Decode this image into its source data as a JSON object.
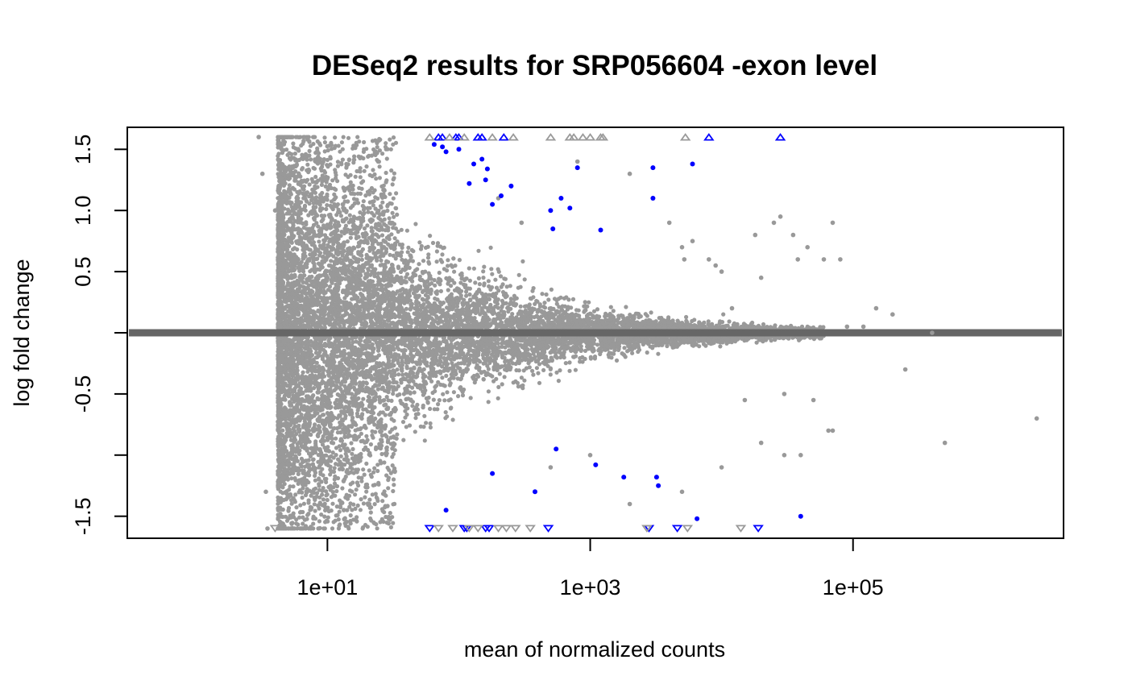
{
  "chart_data": {
    "type": "scatter",
    "title": "DESeq2 results for SRP056604 -exon level",
    "xlabel": "mean of normalized counts",
    "ylabel": "log fold change",
    "x_scale": "log10",
    "xlim": [
      0.3,
      4000000
    ],
    "ylim": [
      -1.68,
      1.68
    ],
    "x_ticks": [
      {
        "value": 10,
        "label": "1e+01"
      },
      {
        "value": 1000,
        "label": "1e+03"
      },
      {
        "value": 100000,
        "label": "1e+05"
      }
    ],
    "y_ticks": [
      {
        "value": -1.5,
        "label": "-1.5"
      },
      {
        "value": -1.0,
        "label": ""
      },
      {
        "value": -0.5,
        "label": "-0.5"
      },
      {
        "value": 0.0,
        "label": ""
      },
      {
        "value": 0.5,
        "label": "0.5"
      },
      {
        "value": 1.0,
        "label": "1.0"
      },
      {
        "value": 1.5,
        "label": "1.5"
      }
    ],
    "reference_line": {
      "y": 0,
      "color": "#666666"
    },
    "colors": {
      "non_significant": "#999999",
      "significant": "#0000ff"
    },
    "clip_limit": 1.6,
    "series": [
      {
        "significant": false,
        "points": [
          [
            3,
            1.6
          ],
          [
            3.5,
            -1.6
          ],
          [
            3.2,
            1.3
          ],
          [
            3.4,
            -1.3
          ],
          [
            4,
            1.0
          ],
          [
            5,
            -1.0
          ],
          [
            200,
            1.1
          ],
          [
            300,
            0.9
          ],
          [
            500,
            -1.1
          ],
          [
            800,
            1.4
          ],
          [
            1000,
            -1.0
          ],
          [
            2000,
            1.3
          ],
          [
            3000,
            1.1
          ],
          [
            4000,
            0.9
          ],
          [
            5000,
            0.7
          ],
          [
            5200,
            0.6
          ],
          [
            6000,
            0.75
          ],
          [
            8000,
            0.6
          ],
          [
            9000,
            0.55
          ],
          [
            10000,
            0.5
          ],
          [
            12000,
            0.2
          ],
          [
            15000,
            -0.55
          ],
          [
            18000,
            0.8
          ],
          [
            20000,
            0.45
          ],
          [
            25000,
            0.9
          ],
          [
            28000,
            0.95
          ],
          [
            30000,
            -0.5
          ],
          [
            35000,
            0.8
          ],
          [
            38000,
            0.6
          ],
          [
            45000,
            0.7
          ],
          [
            50000,
            -0.55
          ],
          [
            60000,
            0.6
          ],
          [
            65000,
            -0.8
          ],
          [
            70000,
            0.9
          ],
          [
            80000,
            0.6
          ],
          [
            90000,
            0.05
          ],
          [
            120000,
            0.05
          ],
          [
            150000,
            0.2
          ],
          [
            200000,
            0.15
          ],
          [
            250000,
            -0.3
          ],
          [
            400000,
            0.0
          ],
          [
            500000,
            -0.9
          ],
          [
            2500000,
            -0.7
          ],
          [
            40000,
            -1.0
          ],
          [
            70000,
            -0.8
          ],
          [
            5000,
            -1.3
          ],
          [
            10000,
            -1.1
          ],
          [
            20000,
            -0.9
          ],
          [
            30000,
            -1.0
          ],
          [
            2000,
            -1.4
          ]
        ]
      },
      {
        "significant": true,
        "points": [
          [
            100,
            1.5
          ],
          [
            150,
            1.42
          ],
          [
            120,
            1.22
          ],
          [
            130,
            1.38
          ],
          [
            165,
            1.34
          ],
          [
            180,
            1.05
          ],
          [
            210,
            1.12
          ],
          [
            250,
            1.2
          ],
          [
            160,
            1.25
          ],
          [
            800,
            1.35
          ],
          [
            700,
            1.02
          ],
          [
            600,
            1.1
          ],
          [
            500,
            1.0
          ],
          [
            520,
            0.85
          ],
          [
            1200,
            0.84
          ],
          [
            3000,
            1.35
          ],
          [
            3000,
            1.1
          ],
          [
            6000,
            1.38
          ],
          [
            550,
            -0.95
          ],
          [
            1100,
            -1.08
          ],
          [
            1800,
            -1.18
          ],
          [
            3200,
            -1.18
          ],
          [
            3300,
            -1.25
          ],
          [
            380,
            -1.3
          ],
          [
            180,
            -1.15
          ],
          [
            80,
            -1.45
          ],
          [
            6500,
            -1.52
          ],
          [
            40000,
            -1.5
          ],
          [
            75,
            1.52
          ],
          [
            80,
            1.48
          ],
          [
            65,
            1.54
          ]
        ]
      }
    ],
    "clipped_markers": [
      {
        "x": 70,
        "y": 1.6,
        "significant": true
      },
      {
        "x": 75,
        "y": 1.6,
        "significant": true
      },
      {
        "x": 95,
        "y": 1.6,
        "significant": true
      },
      {
        "x": 100,
        "y": 1.6,
        "significant": true
      },
      {
        "x": 140,
        "y": 1.6,
        "significant": true
      },
      {
        "x": 150,
        "y": 1.6,
        "significant": true
      },
      {
        "x": 220,
        "y": 1.6,
        "significant": true
      },
      {
        "x": 8000,
        "y": 1.6,
        "significant": true
      },
      {
        "x": 28000,
        "y": 1.6,
        "significant": true
      },
      {
        "x": 60,
        "y": 1.6,
        "significant": false
      },
      {
        "x": 85,
        "y": 1.6,
        "significant": false
      },
      {
        "x": 110,
        "y": 1.6,
        "significant": false
      },
      {
        "x": 180,
        "y": 1.6,
        "significant": false
      },
      {
        "x": 260,
        "y": 1.6,
        "significant": false
      },
      {
        "x": 500,
        "y": 1.6,
        "significant": false
      },
      {
        "x": 700,
        "y": 1.6,
        "significant": false
      },
      {
        "x": 750,
        "y": 1.6,
        "significant": false
      },
      {
        "x": 880,
        "y": 1.6,
        "significant": false
      },
      {
        "x": 1000,
        "y": 1.6,
        "significant": false
      },
      {
        "x": 1200,
        "y": 1.6,
        "significant": false
      },
      {
        "x": 1250,
        "y": 1.6,
        "significant": false
      },
      {
        "x": 5300,
        "y": 1.6,
        "significant": false
      },
      {
        "x": 60,
        "y": -1.6,
        "significant": true
      },
      {
        "x": 110,
        "y": -1.6,
        "significant": true
      },
      {
        "x": 115,
        "y": -1.6,
        "significant": true
      },
      {
        "x": 160,
        "y": -1.6,
        "significant": true
      },
      {
        "x": 170,
        "y": -1.6,
        "significant": true
      },
      {
        "x": 480,
        "y": -1.6,
        "significant": true
      },
      {
        "x": 2800,
        "y": -1.6,
        "significant": true
      },
      {
        "x": 4600,
        "y": -1.6,
        "significant": true
      },
      {
        "x": 19000,
        "y": -1.6,
        "significant": true
      },
      {
        "x": 4,
        "y": -1.6,
        "significant": false
      },
      {
        "x": 70,
        "y": -1.6,
        "significant": false
      },
      {
        "x": 90,
        "y": -1.6,
        "significant": false
      },
      {
        "x": 120,
        "y": -1.6,
        "significant": false
      },
      {
        "x": 140,
        "y": -1.6,
        "significant": false
      },
      {
        "x": 200,
        "y": -1.6,
        "significant": false
      },
      {
        "x": 230,
        "y": -1.6,
        "significant": false
      },
      {
        "x": 270,
        "y": -1.6,
        "significant": false
      },
      {
        "x": 350,
        "y": -1.6,
        "significant": false
      },
      {
        "x": 2700,
        "y": -1.6,
        "significant": false
      },
      {
        "x": 5500,
        "y": -1.6,
        "significant": false
      },
      {
        "x": 14000,
        "y": -1.6,
        "significant": false
      }
    ],
    "dense_cloud": {
      "description_only": false,
      "x_min": 4.2,
      "x_max": 60000,
      "n_points": 9000
    }
  }
}
